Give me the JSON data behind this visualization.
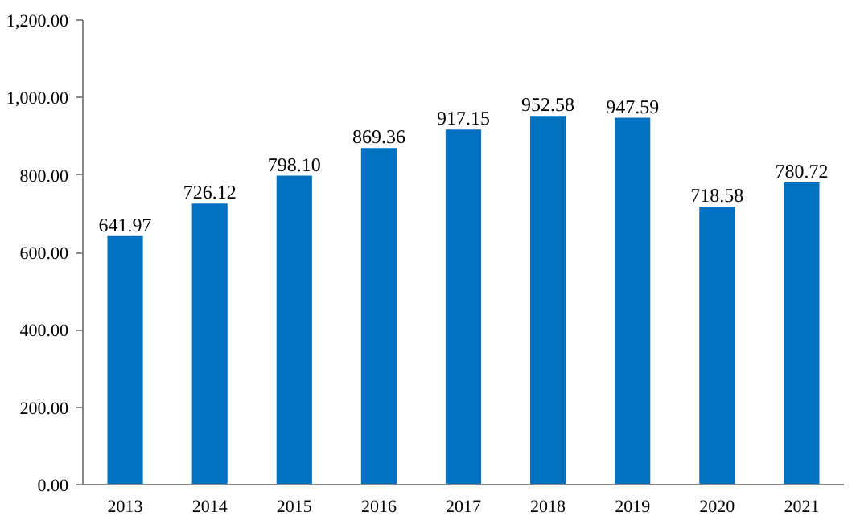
{
  "chart_data": {
    "type": "bar",
    "categories": [
      "2013",
      "2014",
      "2015",
      "2016",
      "2017",
      "2018",
      "2019",
      "2020",
      "2021"
    ],
    "values": [
      641.97,
      726.12,
      798.1,
      869.36,
      917.15,
      952.58,
      947.59,
      718.58,
      780.72
    ],
    "value_labels": [
      "641.97",
      "726.12",
      "798.10",
      "869.36",
      "917.15",
      "952.58",
      "947.59",
      "718.58",
      "780.72"
    ],
    "color": "#0070c0",
    "ylim": [
      0,
      1200
    ],
    "yticks": [
      {
        "value": 0,
        "label": "0.00"
      },
      {
        "value": 200,
        "label": "200.00"
      },
      {
        "value": 400,
        "label": "400.00"
      },
      {
        "value": 600,
        "label": "600.00"
      },
      {
        "value": 800,
        "label": "800.00"
      },
      {
        "value": 1000,
        "label": "1,000.00"
      },
      {
        "value": 1200,
        "label": "1,200.00"
      }
    ],
    "grid": false
  }
}
